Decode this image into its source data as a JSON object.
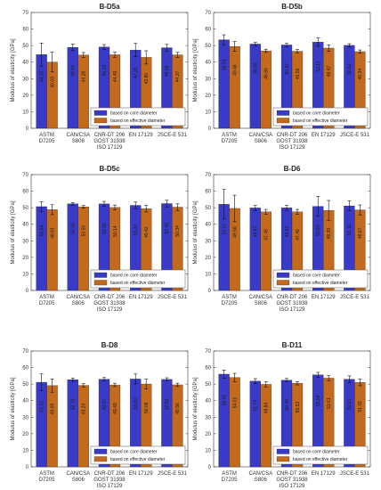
{
  "legend": {
    "core": "based on core diameter",
    "effective": "based on effective diameter"
  },
  "colors": {
    "core": "#3a3ac8",
    "effective": "#c46a1c",
    "error": "#111111",
    "frame": "#333333"
  },
  "chart_data": [
    {
      "type": "bar",
      "title": "B-D5a",
      "ylabel": "Modulus of elasticity [GPa]",
      "ylim": [
        0,
        70
      ],
      "yticks": [
        0,
        10,
        20,
        30,
        40,
        50,
        60,
        70
      ],
      "categories": [
        [
          "ASTM",
          "D7205"
        ],
        [
          "CAN/CSA",
          "S806"
        ],
        [
          "CNR-DT 206",
          "GOST 31938",
          "ISO 17129"
        ],
        [
          "EN 17129"
        ],
        [
          "JSCE-E 531"
        ]
      ],
      "series": [
        {
          "name": "based on core diameter",
          "values": [
            44.53,
            48.94,
            49.1,
            47.28,
            48.69
          ],
          "labels": [
            "44.53",
            "48.94",
            "49.10",
            "47.28",
            "48.69"
          ],
          "errors": [
            7,
            2,
            1.5,
            4,
            2
          ]
        },
        {
          "name": "based on effective diameter",
          "values": [
            40.03,
            44.28,
            44.45,
            42.85,
            44.37
          ],
          "labels": [
            "40.03",
            "44.28",
            "44.45",
            "42.85",
            "44.37"
          ],
          "errors": [
            6,
            1.5,
            1.5,
            4,
            1.5
          ]
        }
      ]
    },
    {
      "type": "bar",
      "title": "B-D5b",
      "ylabel": "Modulus of elasticity [GPa]",
      "ylim": [
        0,
        70
      ],
      "yticks": [
        0,
        10,
        20,
        30,
        40,
        50,
        60,
        70
      ],
      "categories": [
        [
          "ASTM",
          "D7205"
        ],
        [
          "CAN/CSA",
          "S806"
        ],
        [
          "CNR-DT 206",
          "GOST 31938",
          "ISO 17129"
        ],
        [
          "EN 17129"
        ],
        [
          "JSCE-E 531"
        ]
      ],
      "series": [
        {
          "name": "based on core diameter",
          "values": [
            53.51,
            50.92,
            50.37,
            52.11,
            50.12
          ],
          "labels": [
            "53.51",
            "50.92",
            "50.37",
            "52.11",
            "50.12"
          ],
          "errors": [
            3,
            1,
            1,
            2.5,
            1
          ]
        },
        {
          "name": "based on effective diameter",
          "values": [
            49.48,
            46.8,
            46.56,
            48.47,
            46.34
          ],
          "labels": [
            "49.48",
            "46.80",
            "46.56",
            "48.47",
            "46.34"
          ],
          "errors": [
            3,
            1,
            1,
            2,
            1
          ]
        }
      ]
    },
    {
      "type": "bar",
      "title": "B-D5c",
      "ylabel": "Modulus of elasticity [GPa]",
      "ylim": [
        0,
        70
      ],
      "yticks": [
        0,
        10,
        20,
        30,
        40,
        50,
        60,
        70
      ],
      "categories": [
        [
          "ASTM",
          "D7205"
        ],
        [
          "CAN/CSA",
          "S806"
        ],
        [
          "CNR-DT 206",
          "GOST 31938",
          "ISO 17129"
        ],
        [
          "EN 17129"
        ],
        [
          "JSCE-E 531"
        ]
      ],
      "series": [
        {
          "name": "based on core diameter",
          "values": [
            50.64,
            52.35,
            52.29,
            51.41,
            52.49
          ],
          "labels": [
            "50.64",
            "52.35",
            "52.29",
            "51.41",
            "52.49"
          ],
          "errors": [
            3,
            0.8,
            1.5,
            2,
            2
          ]
        },
        {
          "name": "based on effective diameter",
          "values": [
            48.81,
            50.5,
            50.14,
            49.42,
            50.34
          ],
          "labels": [
            "48.81",
            "50.50",
            "50.14",
            "49.42",
            "50.34"
          ],
          "errors": [
            3,
            0.8,
            1.5,
            2,
            2
          ]
        }
      ]
    },
    {
      "type": "bar",
      "title": "B-D6",
      "ylabel": "Modulus of elasticity [GPa]",
      "ylim": [
        0,
        70
      ],
      "yticks": [
        0,
        10,
        20,
        30,
        40,
        50,
        60,
        70
      ],
      "categories": [
        [
          "ASTM",
          "D7205"
        ],
        [
          "CAN/CSA",
          "S806"
        ],
        [
          "CNR-DT 206",
          "GOST 31938",
          "ISO 17129"
        ],
        [
          "EN 17129"
        ],
        [
          "JSCE-E 531"
        ]
      ],
      "series": [
        {
          "name": "based on core diameter",
          "values": [
            52.07,
            49.87,
            49.92,
            50.82,
            51.11
          ],
          "labels": [
            "52.07",
            "49.87",
            "49.92",
            "50.82",
            "51.11"
          ],
          "errors": [
            9,
            1.5,
            1.5,
            6,
            3
          ]
        },
        {
          "name": "based on effective diameter",
          "values": [
            49.56,
            47.48,
            47.49,
            48.39,
            48.67
          ],
          "labels": [
            "49.56",
            "47.48",
            "47.49",
            "48.39",
            "48.67"
          ],
          "errors": [
            8,
            1.5,
            1.5,
            6,
            3
          ]
        }
      ]
    },
    {
      "type": "bar",
      "title": "B-D8",
      "ylabel": "Modulus of elasticity [GPa]",
      "ylim": [
        0,
        70
      ],
      "yticks": [
        0,
        10,
        20,
        30,
        40,
        50,
        60,
        70
      ],
      "categories": [
        [
          "ASTM",
          "D7205"
        ],
        [
          "CAN/CSA",
          "S806"
        ],
        [
          "CNR-DT 206",
          "GOST 31938",
          "ISO 17129"
        ],
        [
          "EN 17129"
        ],
        [
          "JSCE-E 531"
        ]
      ],
      "series": [
        {
          "name": "based on core diameter",
          "values": [
            51.12,
            52.7,
            52.97,
            53.09,
            52.83
          ],
          "labels": [
            "51.12",
            "52.70",
            "52.97",
            "53.09",
            "52.83"
          ],
          "errors": [
            5,
            1,
            1,
            3,
            1
          ]
        },
        {
          "name": "based on effective diameter",
          "values": [
            49.09,
            49.24,
            49.49,
            50.06,
            49.56
          ],
          "labels": [
            "49.09",
            "49.24",
            "49.49",
            "50.06",
            "49.56"
          ],
          "errors": [
            4,
            1,
            1,
            3,
            1
          ]
        }
      ]
    },
    {
      "type": "bar",
      "title": "B-D11",
      "ylabel": "Modulus of elasticity [GPa]",
      "ylim": [
        0,
        70
      ],
      "yticks": [
        0,
        10,
        20,
        30,
        40,
        50,
        60,
        70
      ],
      "categories": [
        [
          "ASTM",
          "D7205"
        ],
        [
          "CAN/CSA",
          "S806"
        ],
        [
          "CNR-DT 206",
          "GOST 31938",
          "ISO 17129"
        ],
        [
          "EN 17129"
        ],
        [
          "JSCE-E 531"
        ]
      ],
      "series": [
        {
          "name": "based on core diameter",
          "values": [
            56.01,
            51.79,
            52.4,
            55.58,
            52.97
          ],
          "labels": [
            "56.01",
            "51.79",
            "52.40",
            "55.58",
            "52.97"
          ],
          "errors": [
            2.5,
            1.5,
            1,
            1.5,
            2
          ]
        },
        {
          "name": "based on effective diameter",
          "values": [
            54.01,
            49.84,
            50.53,
            53.61,
            51.02
          ],
          "labels": [
            "54.01",
            "49.84",
            "50.53",
            "53.61",
            "51.02"
          ],
          "errors": [
            2.5,
            1.5,
            1,
            1.5,
            2
          ]
        }
      ]
    }
  ]
}
